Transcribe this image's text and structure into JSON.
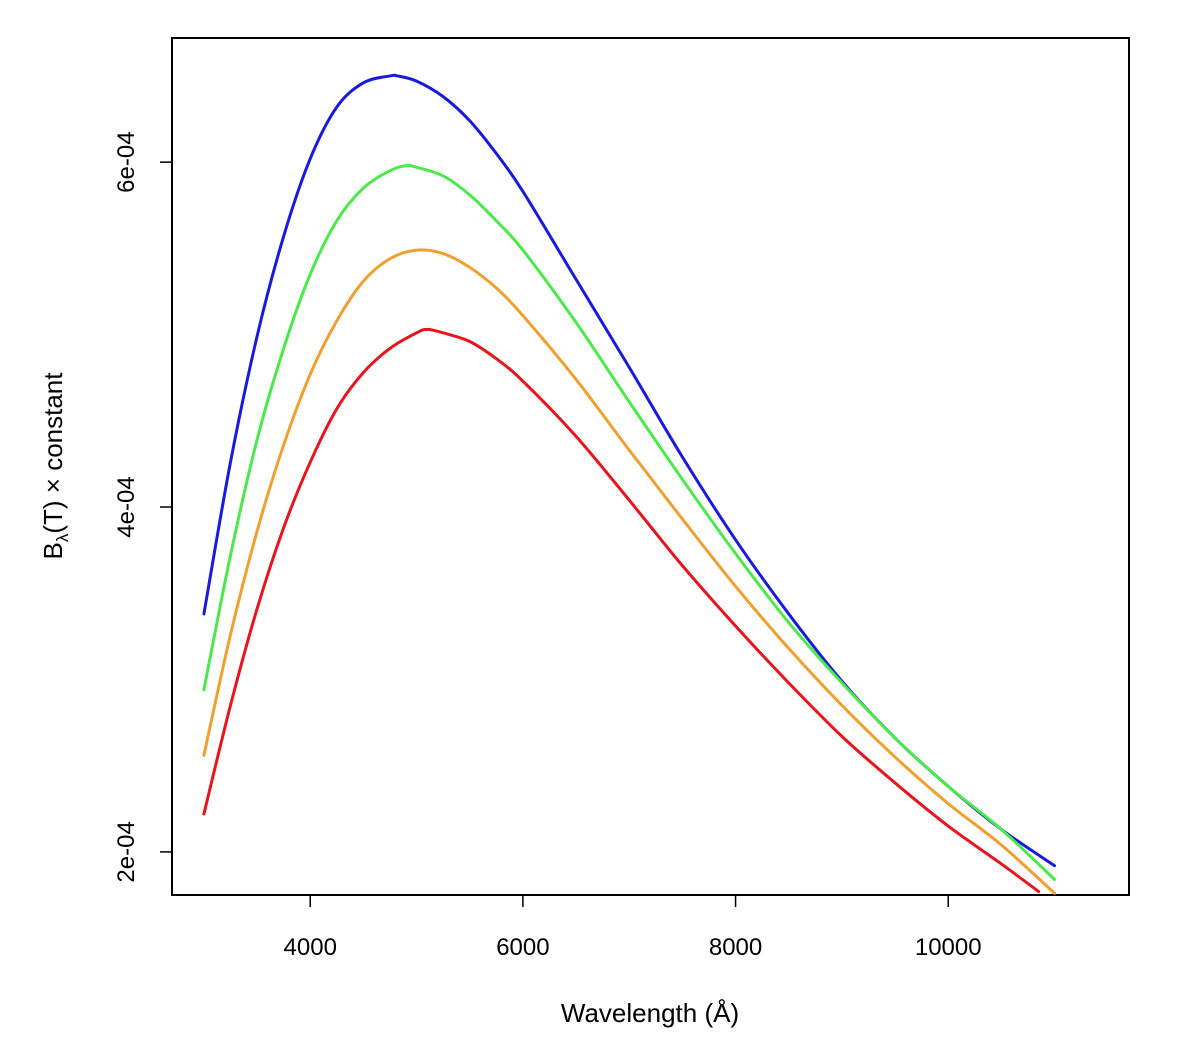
{
  "chart_data": {
    "type": "line",
    "title": "",
    "xlabel": "Wavelength (Å)",
    "ylabel": {
      "symbol": "B",
      "subscript": "λ",
      "rest": "(T) × constant"
    },
    "xlim": [
      2700,
      11700
    ],
    "ylim": [
      0.000175,
      0.000672
    ],
    "x_ticks": [
      4000,
      6000,
      8000,
      10000
    ],
    "x_tick_labels": [
      "4000",
      "6000",
      "8000",
      "10000"
    ],
    "y_ticks": [
      0.0002,
      0.0004,
      0.0006
    ],
    "y_tick_labels": [
      "2e-04",
      "4e-04",
      "6e-04"
    ],
    "grid": false,
    "series": [
      {
        "color": "#1a1adc",
        "x": [
          3000,
          3250,
          3500,
          3750,
          4000,
          4250,
          4500,
          4750,
          4820,
          5000,
          5250,
          5500,
          5750,
          6000,
          6500,
          7000,
          7500,
          8000,
          8500,
          9000,
          9500,
          10000,
          10500,
          11000
        ],
        "y": [
          0.000338,
          0.000426,
          0.000499,
          0.000557,
          0.000602,
          0.000632,
          0.000646,
          0.00065,
          0.00065,
          0.000647,
          0.000638,
          0.000624,
          0.000605,
          0.000583,
          0.000532,
          0.000481,
          0.000429,
          0.000381,
          0.000338,
          0.000299,
          0.000266,
          0.000238,
          0.000213,
          0.000192
        ]
      },
      {
        "color": "#4ce84c",
        "x": [
          3000,
          3250,
          3500,
          3750,
          4000,
          4250,
          4500,
          4750,
          4900,
          5000,
          5250,
          5500,
          5750,
          6000,
          6500,
          7000,
          7500,
          8000,
          8500,
          9000,
          9500,
          10000,
          10500,
          11000
        ],
        "y": [
          0.000294,
          0.000372,
          0.000439,
          0.000492,
          0.000535,
          0.000566,
          0.000585,
          0.000595,
          0.000598,
          0.000597,
          0.000592,
          0.000581,
          0.000566,
          0.000549,
          0.000507,
          0.000461,
          0.000416,
          0.000373,
          0.000333,
          0.000298,
          0.000266,
          0.000238,
          0.000213,
          0.000184
        ]
      },
      {
        "color": "#f0a030",
        "x": [
          3000,
          3250,
          3500,
          3750,
          4000,
          4250,
          4500,
          4750,
          5000,
          5250,
          5500,
          5750,
          6000,
          6500,
          7000,
          7500,
          8000,
          8500,
          9000,
          9500,
          10000,
          10500,
          11000
        ],
        "y": [
          0.000256,
          0.000326,
          0.000386,
          0.000436,
          0.000477,
          0.000508,
          0.000531,
          0.000544,
          0.000549,
          0.000547,
          0.000539,
          0.000527,
          0.000511,
          0.000474,
          0.000433,
          0.000393,
          0.000354,
          0.000318,
          0.000285,
          0.000255,
          0.000228,
          0.000204,
          0.000176
        ]
      },
      {
        "color": "#e8141e",
        "x": [
          3000,
          3250,
          3500,
          3750,
          4000,
          4250,
          4500,
          4750,
          5000,
          5100,
          5250,
          5500,
          5750,
          6000,
          6500,
          7000,
          7500,
          8000,
          8500,
          9000,
          9500,
          10000,
          10500,
          10850
        ],
        "y": [
          0.000222,
          0.000285,
          0.000341,
          0.000388,
          0.000426,
          0.000457,
          0.000478,
          0.000492,
          0.000501,
          0.000503,
          0.000501,
          0.000496,
          0.000486,
          0.000473,
          0.000441,
          0.000404,
          0.000366,
          0.000331,
          0.000298,
          0.000267,
          0.00024,
          0.000215,
          0.000193,
          0.000177
        ]
      }
    ]
  }
}
